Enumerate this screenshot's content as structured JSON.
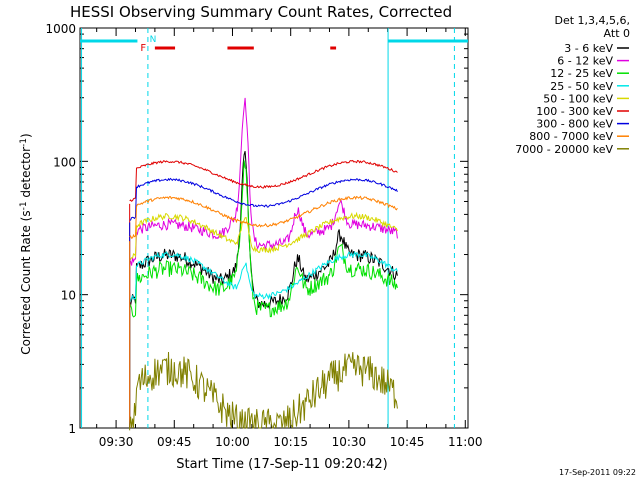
{
  "chart_data": {
    "type": "line",
    "title": "HESSI Observing Summary Count Rates, Corrected",
    "xlabel": "Start Time (17-Sep-11 09:20:42)",
    "ylabel": "Corrected Count Rate (s",
    "ylabel_sup1": "-1",
    "ylabel_mid": " detector",
    "ylabel_sup2": "-1",
    "ylabel_end": ")",
    "y_scale": "log",
    "ylim": [
      1,
      1000
    ],
    "xlim_minutes": [
      0,
      100
    ],
    "yticks": [
      "1",
      "10",
      "100",
      "1000"
    ],
    "xticks": [
      {
        "m": 9.3,
        "label": "09:30"
      },
      {
        "m": 24.3,
        "label": "09:45"
      },
      {
        "m": 39.3,
        "label": "10:00"
      },
      {
        "m": 54.3,
        "label": "10:15"
      },
      {
        "m": 69.3,
        "label": "10:30"
      },
      {
        "m": 84.3,
        "label": "10:45"
      },
      {
        "m": 99.3,
        "label": "11:00"
      }
    ],
    "legend_header": [
      "Det 1,3,4,5,6,",
      "Att 0"
    ],
    "legend_position": "right",
    "timestamp": "17-Sep-2011 09:22",
    "flags": {
      "F_label": "F",
      "N_label": "N"
    },
    "series": [
      {
        "name": "3 - 6 keV",
        "color": "#000000"
      },
      {
        "name": "6 - 12 keV",
        "color": "#e000e0"
      },
      {
        "name": "12 - 25 keV",
        "color": "#00e000"
      },
      {
        "name": "25 - 50 keV",
        "color": "#00e8e8"
      },
      {
        "name": "50 - 100 keV",
        "color": "#d8d800"
      },
      {
        "name": "100 - 300 keV",
        "color": "#e00000"
      },
      {
        "name": "300 - 800 keV",
        "color": "#0000e0"
      },
      {
        "name": "800 - 7000 keV",
        "color": "#ff8000"
      },
      {
        "name": "7000 - 20000 keV",
        "color": "#808000"
      }
    ]
  }
}
